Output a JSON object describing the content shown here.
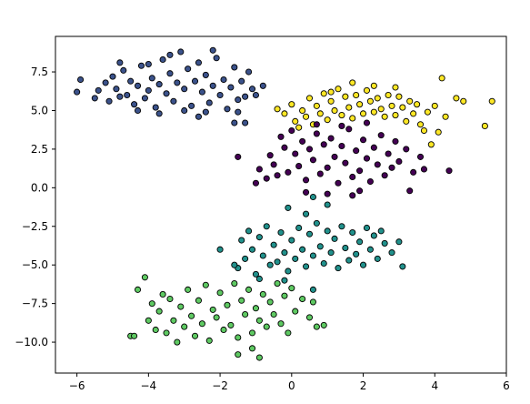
{
  "chart_data": {
    "type": "scatter",
    "title": "",
    "xlabel": "",
    "ylabel": "",
    "xlim": [
      -6.6,
      6.0
    ],
    "ylim": [
      -12.0,
      9.8
    ],
    "grid": false,
    "x_ticks": [
      -6,
      -4,
      -2,
      0,
      2,
      4,
      6
    ],
    "y_ticks": [
      -10.0,
      -7.5,
      -5.0,
      -2.5,
      0.0,
      2.5,
      5.0,
      7.5
    ],
    "x_tick_labels": [
      "−6",
      "−4",
      "−2",
      "0",
      "2",
      "4",
      "6"
    ],
    "y_tick_labels": [
      "−10.0",
      "−7.5",
      "−5.0",
      "−2.5",
      "0.0",
      "2.5",
      "5.0",
      "7.5"
    ],
    "marker_edge_color": "#000000",
    "series": [
      {
        "color": "#3b528b",
        "points": [
          [
            -6.0,
            6.2
          ],
          [
            -5.9,
            7.0
          ],
          [
            -5.5,
            5.8
          ],
          [
            -5.4,
            6.3
          ],
          [
            -5.2,
            6.8
          ],
          [
            -5.1,
            5.6
          ],
          [
            -5.0,
            7.2
          ],
          [
            -4.9,
            6.4
          ],
          [
            -4.8,
            5.9
          ],
          [
            -4.7,
            7.6
          ],
          [
            -4.6,
            6.0
          ],
          [
            -4.5,
            6.9
          ],
          [
            -4.4,
            5.4
          ],
          [
            -4.3,
            6.6
          ],
          [
            -4.2,
            7.9
          ],
          [
            -4.1,
            5.8
          ],
          [
            -4.0,
            6.3
          ],
          [
            -3.9,
            7.1
          ],
          [
            -3.8,
            5.2
          ],
          [
            -3.7,
            6.7
          ],
          [
            -3.6,
            8.3
          ],
          [
            -3.5,
            6.1
          ],
          [
            -3.4,
            7.4
          ],
          [
            -3.3,
            5.6
          ],
          [
            -3.2,
            6.8
          ],
          [
            -3.1,
            8.8
          ],
          [
            -3.0,
            6.4
          ],
          [
            -2.9,
            7.7
          ],
          [
            -2.8,
            5.3
          ],
          [
            -2.7,
            6.9
          ],
          [
            -2.6,
            8.1
          ],
          [
            -2.5,
            6.2
          ],
          [
            -2.4,
            7.3
          ],
          [
            -2.3,
            5.5
          ],
          [
            -2.2,
            6.6
          ],
          [
            -2.1,
            8.4
          ],
          [
            -2.0,
            6.0
          ],
          [
            -1.9,
            7.0
          ],
          [
            -1.8,
            5.1
          ],
          [
            -1.7,
            6.5
          ],
          [
            -1.6,
            7.8
          ],
          [
            -1.5,
            5.7
          ],
          [
            -1.4,
            6.9
          ],
          [
            -1.3,
            5.9
          ],
          [
            -1.2,
            7.5
          ],
          [
            -1.1,
            6.4
          ],
          [
            -1.0,
            6.0
          ],
          [
            -0.8,
            6.6
          ],
          [
            -3.0,
            5.0
          ],
          [
            -2.6,
            4.6
          ],
          [
            -1.5,
            4.9
          ],
          [
            -1.6,
            4.2
          ],
          [
            -1.3,
            4.2
          ],
          [
            -3.4,
            8.6
          ],
          [
            -2.2,
            8.9
          ],
          [
            -4.0,
            8.0
          ],
          [
            -3.7,
            4.8
          ],
          [
            -2.4,
            4.9
          ],
          [
            -4.3,
            5.0
          ],
          [
            -4.8,
            8.1
          ]
        ]
      },
      {
        "color": "#fde725",
        "points": [
          [
            -0.4,
            5.1
          ],
          [
            -0.2,
            4.8
          ],
          [
            0.0,
            5.4
          ],
          [
            0.1,
            4.3
          ],
          [
            0.2,
            3.9
          ],
          [
            0.3,
            5.0
          ],
          [
            0.4,
            4.6
          ],
          [
            0.5,
            5.8
          ],
          [
            0.6,
            4.1
          ],
          [
            0.7,
            5.3
          ],
          [
            0.8,
            4.8
          ],
          [
            0.9,
            6.1
          ],
          [
            1.0,
            4.4
          ],
          [
            1.1,
            5.6
          ],
          [
            1.2,
            5.0
          ],
          [
            1.3,
            6.4
          ],
          [
            1.4,
            4.7
          ],
          [
            1.5,
            5.9
          ],
          [
            1.6,
            5.2
          ],
          [
            1.7,
            4.5
          ],
          [
            1.8,
            6.0
          ],
          [
            1.9,
            5.4
          ],
          [
            2.0,
            4.8
          ],
          [
            2.1,
            6.3
          ],
          [
            2.2,
            5.6
          ],
          [
            2.3,
            4.9
          ],
          [
            2.4,
            5.8
          ],
          [
            2.5,
            5.1
          ],
          [
            2.6,
            4.6
          ],
          [
            2.7,
            6.0
          ],
          [
            2.8,
            5.3
          ],
          [
            2.9,
            4.7
          ],
          [
            3.0,
            5.9
          ],
          [
            3.1,
            5.2
          ],
          [
            3.2,
            4.3
          ],
          [
            3.3,
            5.6
          ],
          [
            3.4,
            4.8
          ],
          [
            3.5,
            5.4
          ],
          [
            3.6,
            4.1
          ],
          [
            3.8,
            4.9
          ],
          [
            4.0,
            5.3
          ],
          [
            4.2,
            7.1
          ],
          [
            4.6,
            5.8
          ],
          [
            4.8,
            5.6
          ],
          [
            5.4,
            4.0
          ],
          [
            5.6,
            5.6
          ],
          [
            3.9,
            2.8
          ],
          [
            4.1,
            3.6
          ],
          [
            4.3,
            4.6
          ],
          [
            3.7,
            3.7
          ],
          [
            1.7,
            6.8
          ],
          [
            2.3,
            6.6
          ],
          [
            2.9,
            6.5
          ],
          [
            1.1,
            6.2
          ]
        ]
      },
      {
        "color": "#440154",
        "points": [
          [
            -0.9,
            1.2
          ],
          [
            -0.7,
            0.6
          ],
          [
            -0.6,
            2.1
          ],
          [
            -0.5,
            1.5
          ],
          [
            -0.4,
            0.8
          ],
          [
            -0.3,
            3.3
          ],
          [
            -0.2,
            2.6
          ],
          [
            -0.1,
            1.0
          ],
          [
            0.0,
            3.7
          ],
          [
            0.1,
            2.2
          ],
          [
            0.2,
            1.4
          ],
          [
            0.3,
            3.0
          ],
          [
            0.4,
            0.5
          ],
          [
            0.5,
            2.5
          ],
          [
            0.6,
            1.8
          ],
          [
            0.7,
            3.5
          ],
          [
            0.8,
            0.9
          ],
          [
            0.9,
            2.8
          ],
          [
            1.0,
            1.3
          ],
          [
            1.1,
            3.2
          ],
          [
            1.2,
            2.0
          ],
          [
            1.3,
            0.3
          ],
          [
            1.4,
            2.7
          ],
          [
            1.5,
            1.6
          ],
          [
            1.6,
            3.8
          ],
          [
            1.7,
            0.7
          ],
          [
            1.8,
            2.4
          ],
          [
            1.9,
            1.1
          ],
          [
            2.0,
            3.1
          ],
          [
            2.1,
            1.9
          ],
          [
            2.2,
            0.4
          ],
          [
            2.3,
            2.6
          ],
          [
            2.4,
            1.5
          ],
          [
            2.5,
            3.4
          ],
          [
            2.6,
            0.8
          ],
          [
            2.7,
            2.2
          ],
          [
            2.8,
            1.3
          ],
          [
            2.9,
            3.0
          ],
          [
            3.0,
            1.7
          ],
          [
            3.2,
            2.5
          ],
          [
            3.4,
            1.0
          ],
          [
            3.6,
            2.0
          ],
          [
            3.7,
            1.2
          ],
          [
            4.4,
            1.1
          ],
          [
            -1.5,
            2.0
          ],
          [
            -1.0,
            0.3
          ],
          [
            0.4,
            -0.3
          ],
          [
            1.0,
            -0.4
          ],
          [
            1.7,
            -0.5
          ],
          [
            1.9,
            -0.2
          ],
          [
            3.3,
            -0.2
          ],
          [
            2.1,
            4.2
          ],
          [
            1.4,
            4.0
          ],
          [
            0.7,
            4.1
          ]
        ]
      },
      {
        "color": "#21918c",
        "points": [
          [
            -1.5,
            -5.2
          ],
          [
            -1.4,
            -3.4
          ],
          [
            -1.3,
            -4.6
          ],
          [
            -1.2,
            -2.8
          ],
          [
            -1.1,
            -4.0
          ],
          [
            -1.0,
            -5.6
          ],
          [
            -0.9,
            -3.2
          ],
          [
            -0.8,
            -4.4
          ],
          [
            -0.7,
            -2.5
          ],
          [
            -0.6,
            -5.0
          ],
          [
            -0.5,
            -3.7
          ],
          [
            -0.4,
            -4.8
          ],
          [
            -0.3,
            -2.9
          ],
          [
            -0.2,
            -4.2
          ],
          [
            -0.1,
            -5.4
          ],
          [
            0.0,
            -3.4
          ],
          [
            0.1,
            -4.6
          ],
          [
            0.2,
            -2.6
          ],
          [
            0.3,
            -4.0
          ],
          [
            0.4,
            -5.1
          ],
          [
            0.5,
            -3.0
          ],
          [
            0.6,
            -4.4
          ],
          [
            0.7,
            -2.3
          ],
          [
            0.8,
            -3.8
          ],
          [
            0.9,
            -4.9
          ],
          [
            1.0,
            -2.8
          ],
          [
            1.1,
            -4.2
          ],
          [
            1.2,
            -3.3
          ],
          [
            1.3,
            -5.2
          ],
          [
            1.4,
            -2.5
          ],
          [
            1.5,
            -3.9
          ],
          [
            1.6,
            -4.7
          ],
          [
            1.7,
            -2.9
          ],
          [
            1.8,
            -4.3
          ],
          [
            1.9,
            -3.5
          ],
          [
            2.0,
            -5.0
          ],
          [
            2.1,
            -2.6
          ],
          [
            2.2,
            -4.0
          ],
          [
            2.3,
            -3.1
          ],
          [
            2.4,
            -4.6
          ],
          [
            2.5,
            -2.8
          ],
          [
            2.6,
            -3.6
          ],
          [
            2.8,
            -4.2
          ],
          [
            3.0,
            -3.5
          ],
          [
            3.1,
            -5.1
          ],
          [
            0.4,
            -1.7
          ],
          [
            -0.1,
            -1.3
          ],
          [
            0.6,
            -0.6
          ],
          [
            1.0,
            -1.1
          ],
          [
            -2.0,
            -4.0
          ],
          [
            -1.6,
            -5.0
          ],
          [
            -0.9,
            -5.9
          ],
          [
            0.6,
            -6.6
          ],
          [
            -0.2,
            -6.0
          ]
        ]
      },
      {
        "color": "#5ec962",
        "points": [
          [
            -4.5,
            -9.6
          ],
          [
            -4.4,
            -9.6
          ],
          [
            -4.3,
            -6.6
          ],
          [
            -4.1,
            -5.8
          ],
          [
            -4.0,
            -8.6
          ],
          [
            -3.9,
            -7.5
          ],
          [
            -3.8,
            -9.2
          ],
          [
            -3.7,
            -8.0
          ],
          [
            -3.6,
            -6.9
          ],
          [
            -3.5,
            -9.4
          ],
          [
            -3.4,
            -7.2
          ],
          [
            -3.3,
            -8.6
          ],
          [
            -3.2,
            -10.0
          ],
          [
            -3.1,
            -7.7
          ],
          [
            -3.0,
            -9.0
          ],
          [
            -2.9,
            -6.6
          ],
          [
            -2.8,
            -8.3
          ],
          [
            -2.7,
            -9.6
          ],
          [
            -2.6,
            -7.3
          ],
          [
            -2.5,
            -8.8
          ],
          [
            -2.4,
            -6.3
          ],
          [
            -2.3,
            -9.9
          ],
          [
            -2.2,
            -7.9
          ],
          [
            -2.1,
            -8.4
          ],
          [
            -2.0,
            -6.8
          ],
          [
            -1.9,
            -9.2
          ],
          [
            -1.8,
            -7.6
          ],
          [
            -1.7,
            -8.9
          ],
          [
            -1.6,
            -6.2
          ],
          [
            -1.5,
            -9.7
          ],
          [
            -1.4,
            -7.3
          ],
          [
            -1.3,
            -8.2
          ],
          [
            -1.2,
            -6.6
          ],
          [
            -1.1,
            -9.4
          ],
          [
            -1.0,
            -7.8
          ],
          [
            -0.9,
            -8.6
          ],
          [
            -0.8,
            -6.9
          ],
          [
            -0.7,
            -9.0
          ],
          [
            -0.6,
            -7.4
          ],
          [
            -0.5,
            -8.2
          ],
          [
            -0.4,
            -6.2
          ],
          [
            -0.3,
            -8.8
          ],
          [
            -0.2,
            -7.0
          ],
          [
            -0.1,
            -9.4
          ],
          [
            0.0,
            -6.5
          ],
          [
            0.1,
            -8.0
          ],
          [
            0.3,
            -7.2
          ],
          [
            0.5,
            -8.4
          ],
          [
            0.7,
            -9.0
          ],
          [
            0.9,
            -8.9
          ],
          [
            0.6,
            -7.4
          ],
          [
            -1.1,
            -10.4
          ],
          [
            -0.9,
            -11.0
          ],
          [
            -1.5,
            -10.8
          ]
        ]
      }
    ]
  }
}
